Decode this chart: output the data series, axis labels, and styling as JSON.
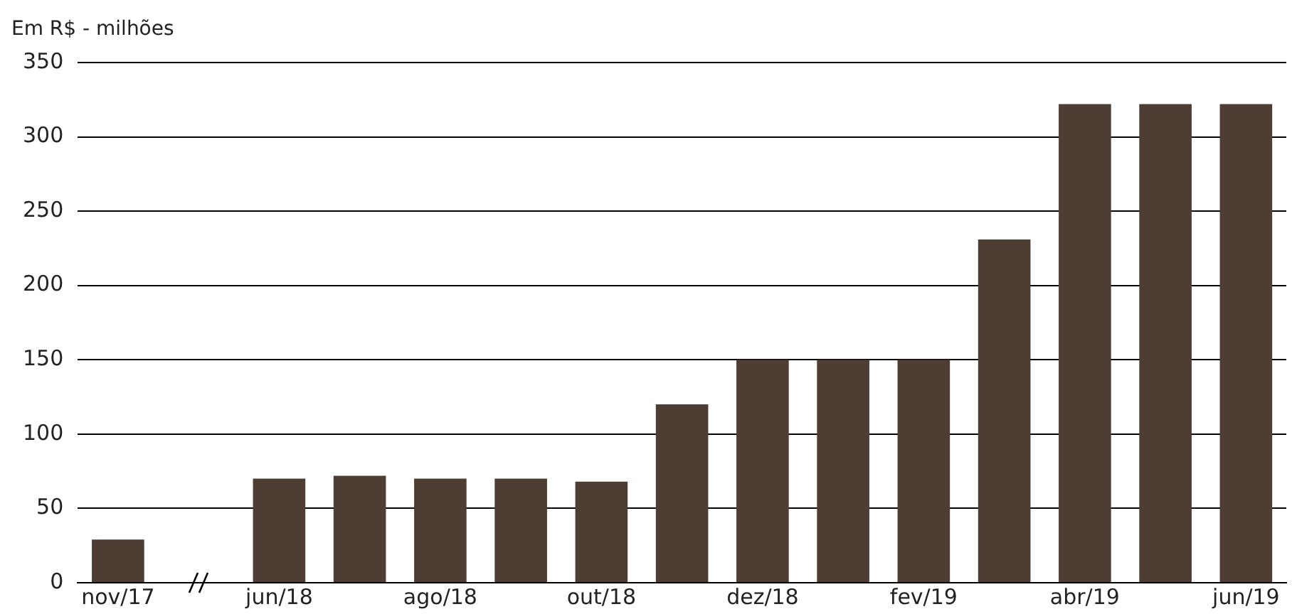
{
  "chart_data": {
    "type": "bar",
    "ylabel": "Em R$ - milhões",
    "categories": [
      "nov/17",
      null,
      "jun/18",
      null,
      "ago/18",
      null,
      "out/18",
      null,
      "dez/18",
      null,
      "fev/19",
      null,
      "abr/19",
      null,
      "jun/19"
    ],
    "values": [
      29,
      null,
      70,
      72,
      70,
      70,
      68,
      120,
      150,
      150,
      150,
      231,
      322,
      322,
      322
    ],
    "color": "#4e3d33",
    "ylim": [
      0,
      350
    ],
    "yticks": [
      0,
      50,
      100,
      150,
      200,
      250,
      300,
      350
    ],
    "grid": "y",
    "legend": false
  }
}
